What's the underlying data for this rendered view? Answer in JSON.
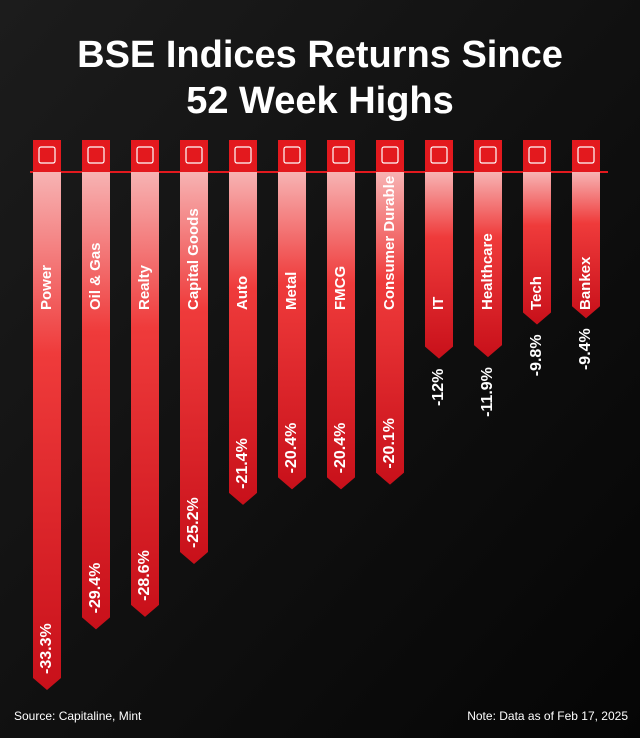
{
  "chart_data": {
    "type": "bar",
    "title": "BSE Indices Returns Since",
    "subtitle": "52 Week Highs",
    "categories": [
      "Power",
      "Oil & Gas",
      "Realty",
      "Capital Goods",
      "Auto",
      "Metal",
      "FMCG",
      "Consumer Durable",
      "IT",
      "Healthcare",
      "Tech",
      "Bankex"
    ],
    "values": [
      -33.3,
      -29.4,
      -28.6,
      -25.2,
      -21.4,
      -20.4,
      -20.4,
      -20.1,
      -12,
      -11.9,
      -9.8,
      -9.4
    ],
    "value_labels": [
      "-33.3%",
      "-29.4%",
      "-28.6%",
      "-25.2%",
      "-21.4%",
      "-20.4%",
      "-20.4%",
      "-20.1%",
      "-12%",
      "-11.9%",
      "-9.8%",
      "-9.4%"
    ],
    "color": "#e3191e",
    "source": "Source: Capitaline, Mint",
    "note": "Note: Data as of Feb 17, 2025"
  }
}
